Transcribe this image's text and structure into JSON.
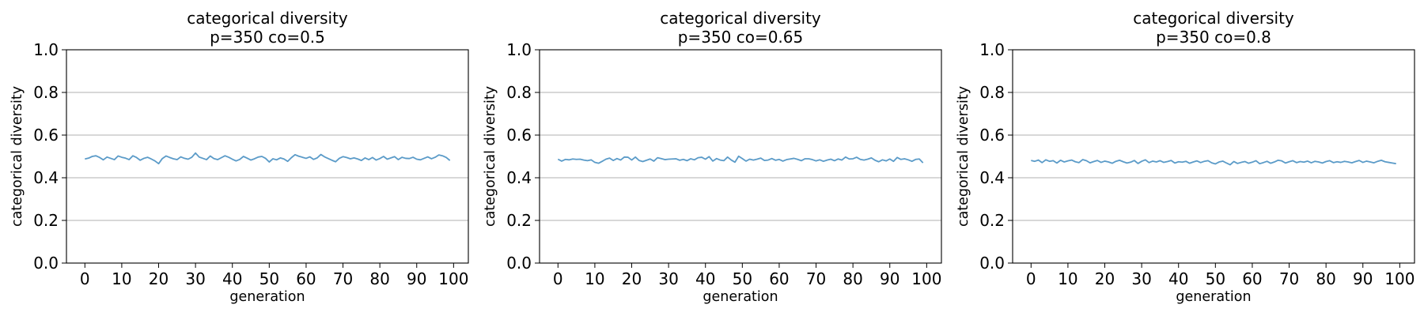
{
  "chart_data": [
    {
      "type": "line",
      "title": "categorical diversity",
      "subtitle": "p=350 co=0.5",
      "xlabel": "generation",
      "ylabel": "categorical diversity",
      "xlim": [
        -5,
        104
      ],
      "ylim": [
        0.0,
        1.0
      ],
      "xticks": [
        0,
        10,
        20,
        30,
        40,
        50,
        60,
        70,
        80,
        90,
        100
      ],
      "yticks": [
        0.0,
        0.2,
        0.4,
        0.6,
        0.8,
        1.0
      ],
      "xtick_labels": [
        "0",
        "10",
        "20",
        "30",
        "40",
        "50",
        "60",
        "70",
        "80",
        "90",
        "100"
      ],
      "ytick_labels": [
        "0.0",
        "0.2",
        "0.4",
        "0.6",
        "0.8",
        "1.0"
      ],
      "grid": "y",
      "line_color": "#5b9bc8",
      "series": [
        {
          "values": [
            0.488,
            0.492,
            0.5,
            0.503,
            0.495,
            0.484,
            0.497,
            0.491,
            0.485,
            0.502,
            0.496,
            0.492,
            0.485,
            0.503,
            0.495,
            0.482,
            0.491,
            0.496,
            0.488,
            0.479,
            0.466,
            0.49,
            0.502,
            0.495,
            0.489,
            0.485,
            0.498,
            0.491,
            0.487,
            0.496,
            0.516,
            0.497,
            0.491,
            0.485,
            0.502,
            0.49,
            0.485,
            0.494,
            0.503,
            0.496,
            0.487,
            0.479,
            0.486,
            0.5,
            0.492,
            0.483,
            0.489,
            0.497,
            0.5,
            0.491,
            0.474,
            0.489,
            0.484,
            0.493,
            0.488,
            0.477,
            0.494,
            0.508,
            0.501,
            0.496,
            0.491,
            0.498,
            0.486,
            0.493,
            0.509,
            0.498,
            0.49,
            0.482,
            0.475,
            0.491,
            0.499,
            0.495,
            0.489,
            0.493,
            0.488,
            0.481,
            0.493,
            0.485,
            0.495,
            0.483,
            0.49,
            0.5,
            0.487,
            0.493,
            0.499,
            0.485,
            0.496,
            0.491,
            0.49,
            0.496,
            0.487,
            0.484,
            0.491,
            0.498,
            0.489,
            0.496,
            0.507,
            0.503,
            0.495,
            0.481
          ]
        }
      ]
    },
    {
      "type": "line",
      "title": "categorical diversity",
      "subtitle": "p=350 co=0.65",
      "xlabel": "generation",
      "ylabel": "categorical diversity",
      "xlim": [
        -5,
        104
      ],
      "ylim": [
        0.0,
        1.0
      ],
      "xticks": [
        0,
        10,
        20,
        30,
        40,
        50,
        60,
        70,
        80,
        90,
        100
      ],
      "yticks": [
        0.0,
        0.2,
        0.4,
        0.6,
        0.8,
        1.0
      ],
      "xtick_labels": [
        "0",
        "10",
        "20",
        "30",
        "40",
        "50",
        "60",
        "70",
        "80",
        "90",
        "100"
      ],
      "ytick_labels": [
        "0.0",
        "0.2",
        "0.4",
        "0.6",
        "0.8",
        "1.0"
      ],
      "grid": "y",
      "line_color": "#5b9bc8",
      "series": [
        {
          "values": [
            0.487,
            0.478,
            0.486,
            0.484,
            0.488,
            0.486,
            0.487,
            0.483,
            0.48,
            0.484,
            0.472,
            0.468,
            0.477,
            0.487,
            0.492,
            0.481,
            0.49,
            0.483,
            0.497,
            0.496,
            0.483,
            0.497,
            0.481,
            0.476,
            0.482,
            0.488,
            0.478,
            0.494,
            0.49,
            0.485,
            0.487,
            0.488,
            0.489,
            0.482,
            0.486,
            0.48,
            0.489,
            0.484,
            0.494,
            0.496,
            0.487,
            0.499,
            0.478,
            0.49,
            0.483,
            0.48,
            0.497,
            0.483,
            0.473,
            0.501,
            0.49,
            0.478,
            0.487,
            0.483,
            0.487,
            0.492,
            0.481,
            0.483,
            0.49,
            0.482,
            0.486,
            0.478,
            0.485,
            0.488,
            0.491,
            0.486,
            0.48,
            0.489,
            0.489,
            0.485,
            0.479,
            0.484,
            0.477,
            0.483,
            0.487,
            0.48,
            0.488,
            0.483,
            0.497,
            0.488,
            0.489,
            0.496,
            0.486,
            0.483,
            0.487,
            0.493,
            0.482,
            0.475,
            0.484,
            0.479,
            0.488,
            0.477,
            0.495,
            0.486,
            0.489,
            0.484,
            0.477,
            0.486,
            0.488,
            0.47
          ]
        }
      ]
    },
    {
      "type": "line",
      "title": "categorical diversity",
      "subtitle": "p=350 co=0.8",
      "xlabel": "generation",
      "ylabel": "categorical diversity",
      "xlim": [
        -5,
        104
      ],
      "ylim": [
        0.0,
        1.0
      ],
      "xticks": [
        0,
        10,
        20,
        30,
        40,
        50,
        60,
        70,
        80,
        90,
        100
      ],
      "yticks": [
        0.0,
        0.2,
        0.4,
        0.6,
        0.8,
        1.0
      ],
      "xtick_labels": [
        "0",
        "10",
        "20",
        "30",
        "40",
        "50",
        "60",
        "70",
        "80",
        "90",
        "100"
      ],
      "ytick_labels": [
        "0.0",
        "0.2",
        "0.4",
        "0.6",
        "0.8",
        "1.0"
      ],
      "grid": "y",
      "line_color": "#5b9bc8",
      "series": [
        {
          "values": [
            0.481,
            0.477,
            0.483,
            0.471,
            0.484,
            0.477,
            0.48,
            0.469,
            0.482,
            0.474,
            0.479,
            0.483,
            0.475,
            0.471,
            0.485,
            0.48,
            0.47,
            0.476,
            0.481,
            0.472,
            0.478,
            0.474,
            0.468,
            0.477,
            0.482,
            0.475,
            0.469,
            0.473,
            0.481,
            0.467,
            0.477,
            0.484,
            0.471,
            0.478,
            0.474,
            0.48,
            0.472,
            0.476,
            0.481,
            0.469,
            0.475,
            0.473,
            0.477,
            0.468,
            0.474,
            0.479,
            0.471,
            0.477,
            0.48,
            0.47,
            0.465,
            0.474,
            0.478,
            0.469,
            0.461,
            0.476,
            0.467,
            0.472,
            0.476,
            0.468,
            0.473,
            0.48,
            0.466,
            0.471,
            0.477,
            0.468,
            0.474,
            0.482,
            0.479,
            0.469,
            0.475,
            0.48,
            0.471,
            0.476,
            0.473,
            0.478,
            0.47,
            0.477,
            0.474,
            0.469,
            0.476,
            0.48,
            0.471,
            0.475,
            0.472,
            0.477,
            0.474,
            0.47,
            0.476,
            0.481,
            0.472,
            0.478,
            0.474,
            0.47,
            0.477,
            0.482,
            0.475,
            0.472,
            0.469,
            0.466
          ]
        }
      ]
    }
  ]
}
